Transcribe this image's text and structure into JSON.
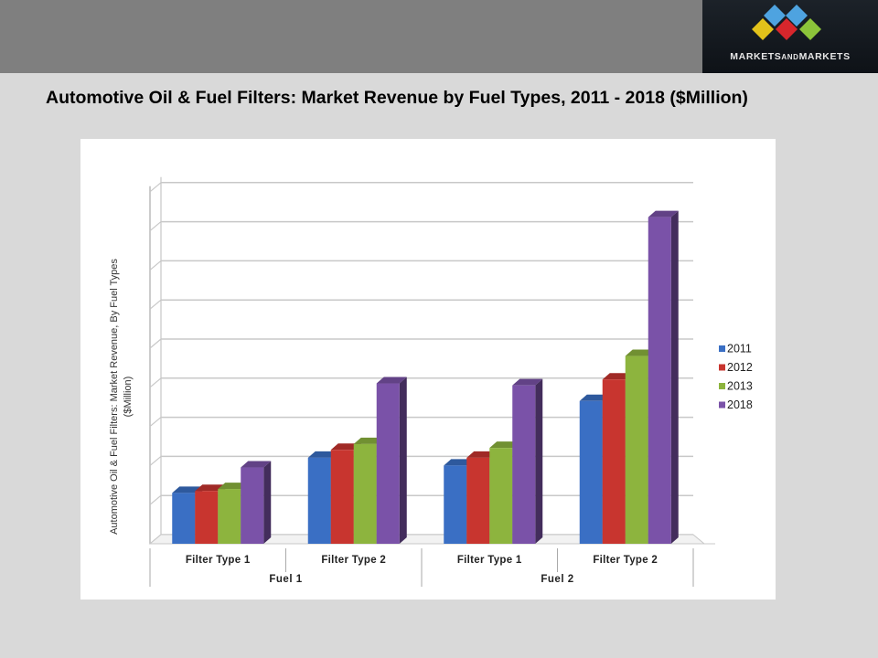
{
  "header": {
    "logo": {
      "brand_text_1": "MARKETS",
      "brand_text_2": "AND",
      "brand_text_3": "MARKETS",
      "icon": "diamond-cluster-logo-icon"
    }
  },
  "title": "Automotive Oil & Fuel Filters: Market Revenue by Fuel Types, 2011 - 2018 ($Million)",
  "colors": {
    "header_band": "#7f7f7f",
    "background": "#d9d9d9",
    "series_2011": "#3a6fc4",
    "series_2012": "#c8352f",
    "series_2013": "#8db43e",
    "series_2018": "#7a52a8"
  },
  "chart_data": {
    "type": "bar",
    "title": "Automotive Oil & Fuel Filters: Market Revenue by Fuel Types, 2011 - 2018 ($Million)",
    "xlabel": "",
    "ylabel": "Automotive Oil & Fuel Filters: Market Revenue, By Fuel Types ($Million)",
    "y_tick_labels_shown": false,
    "y_units_note": "values in gridline units (no numeric axis labels shown)",
    "ylim": [
      0,
      9
    ],
    "grid": true,
    "legend_position": "right",
    "style": "3d clustered column",
    "categories": [
      "Filter Type 1",
      "Filter Type 2",
      "Filter Type 1",
      "Filter Type 2"
    ],
    "category_groups": [
      {
        "label": "Fuel 1",
        "categories": [
          "Filter Type 1",
          "Filter Type 2"
        ]
      },
      {
        "label": "Fuel 2",
        "categories": [
          "Filter Type 1",
          "Filter Type 2"
        ]
      }
    ],
    "series": [
      {
        "name": "2011",
        "color": "#3a6fc4",
        "values": [
          1.3,
          2.2,
          2.0,
          3.65
        ]
      },
      {
        "name": "2012",
        "color": "#c8352f",
        "values": [
          1.35,
          2.4,
          2.2,
          4.2
        ]
      },
      {
        "name": "2013",
        "color": "#8db43e",
        "values": [
          1.4,
          2.55,
          2.45,
          4.8
        ]
      },
      {
        "name": "2018",
        "color": "#7a52a8",
        "values": [
          1.95,
          4.1,
          4.05,
          8.35
        ]
      }
    ]
  },
  "axis": {
    "ylabel_line1": "Automotive Oil & Fuel Filters: Market Revenue, By Fuel Types",
    "ylabel_line2": "($Million)",
    "x_labels": [
      "Filter Type 1",
      "Filter Type 2",
      "Filter Type 1",
      "Filter Type 2"
    ],
    "group_labels": [
      "Fuel 1",
      "Fuel 2"
    ]
  },
  "legend": [
    {
      "label": "2011",
      "color": "#3a6fc4"
    },
    {
      "label": "2012",
      "color": "#c8352f"
    },
    {
      "label": "2013",
      "color": "#8db43e"
    },
    {
      "label": "2018",
      "color": "#7a52a8"
    }
  ]
}
